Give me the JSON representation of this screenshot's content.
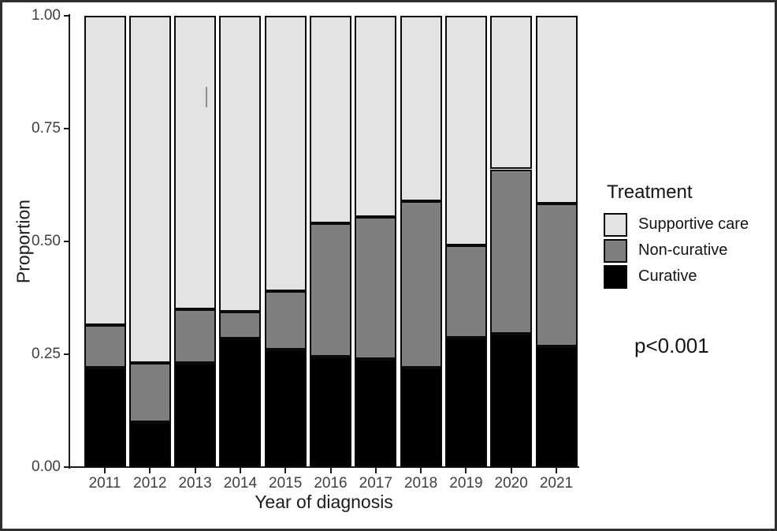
{
  "figure": {
    "background": "#ffffff",
    "border_color": "#2e2e2e",
    "axis_color": "#1c1c1c",
    "tick_label_color": "#3f3f3f"
  },
  "chart_data": {
    "type": "bar",
    "stacked": true,
    "title": "",
    "xlabel": "Year of diagnosis",
    "ylabel": "Proportion",
    "ylim": [
      0,
      1
    ],
    "grid": false,
    "categories": [
      "2011",
      "2012",
      "2013",
      "2014",
      "2015",
      "2016",
      "2017",
      "2018",
      "2019",
      "2020",
      "2021"
    ],
    "series": [
      {
        "name": "Curative",
        "color": "#000000",
        "values": [
          0.22,
          0.1,
          0.23,
          0.285,
          0.26,
          0.245,
          0.24,
          0.22,
          0.287,
          0.295,
          0.267
        ]
      },
      {
        "name": "Non-curative",
        "color": "#7f7f7f",
        "values": [
          0.095,
          0.13,
          0.12,
          0.06,
          0.13,
          0.295,
          0.315,
          0.37,
          0.205,
          0.365,
          0.317
        ]
      },
      {
        "name": "Supportive care",
        "color": "#e3e3e3",
        "values": [
          0.685,
          0.77,
          0.65,
          0.655,
          0.61,
          0.46,
          0.445,
          0.41,
          0.508,
          0.34,
          0.416
        ]
      }
    ],
    "yticks": {
      "values": [
        0,
        0.25,
        0.5,
        0.75,
        1
      ],
      "labels": [
        "0.00",
        "0.25",
        "0.50",
        "0.75",
        "1.00"
      ]
    },
    "legend": {
      "title": "Treatment",
      "position": "right",
      "entries": [
        {
          "label": "Supportive care",
          "color": "#e3e3e3"
        },
        {
          "label": "Non-curative",
          "color": "#7f7f7f"
        },
        {
          "label": "Curative",
          "color": "#000000"
        }
      ]
    },
    "annotation": "p<0.001"
  }
}
